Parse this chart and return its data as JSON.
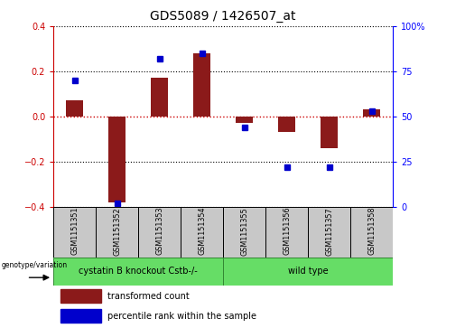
{
  "title": "GDS5089 / 1426507_at",
  "samples": [
    "GSM1151351",
    "GSM1151352",
    "GSM1151353",
    "GSM1151354",
    "GSM1151355",
    "GSM1151356",
    "GSM1151357",
    "GSM1151358"
  ],
  "transformed_count": [
    0.07,
    -0.38,
    0.17,
    0.28,
    -0.03,
    -0.07,
    -0.14,
    0.03
  ],
  "percentile_rank": [
    70,
    2,
    82,
    85,
    44,
    22,
    22,
    53
  ],
  "ylim_left": [
    -0.4,
    0.4
  ],
  "ylim_right": [
    0,
    100
  ],
  "yticks_left": [
    -0.4,
    -0.2,
    0.0,
    0.2,
    0.4
  ],
  "yticks_right": [
    0,
    25,
    50,
    75,
    100
  ],
  "group1_label": "cystatin B knockout Cstb-/-",
  "group1_samples": 4,
  "group2_label": "wild type",
  "group2_samples": 4,
  "genotype_label": "genotype/variation",
  "legend_red": "transformed count",
  "legend_blue": "percentile rank within the sample",
  "bar_color": "#8B1A1A",
  "dot_color": "#0000CC",
  "zero_line_color": "#CC0000",
  "left_tick_color": "#CC0000",
  "right_tick_color": "#0000FF",
  "group1_color": "#66DD66",
  "group2_color": "#66DD66",
  "tick_bg_color": "#C8C8C8",
  "bar_width": 0.4
}
